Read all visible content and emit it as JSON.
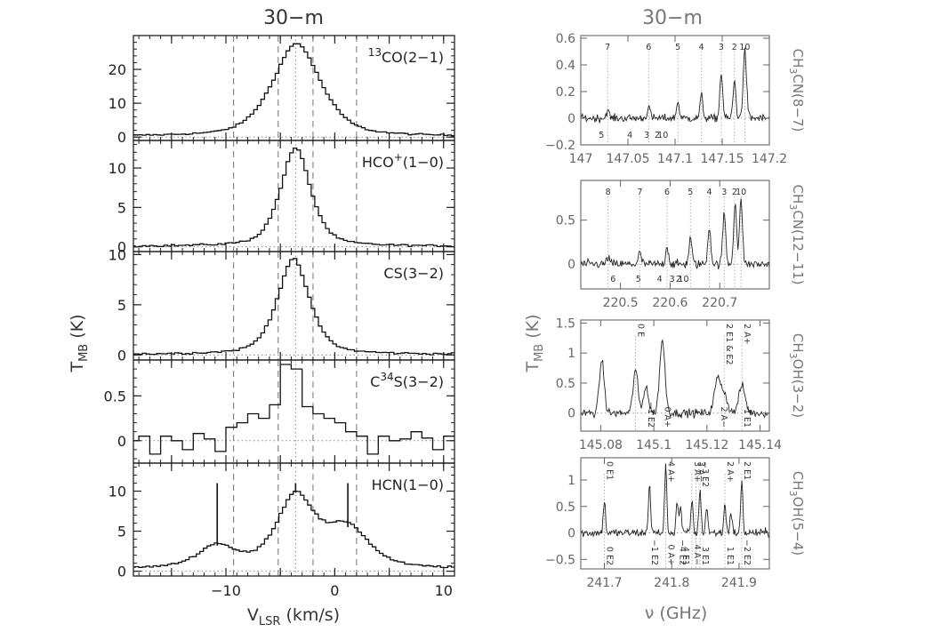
{
  "figure": {
    "left_title": "30−m",
    "right_title": "30−m",
    "left_ylabel_main": "T",
    "left_ylabel_sub": "MB",
    "left_ylabel_unit": " (K)",
    "left_xlabel_main": "V",
    "left_xlabel_sub": "LSR",
    "left_xlabel_unit": " (km/s)",
    "right_ylabel_main": "T",
    "right_ylabel_sub": "MB",
    "right_ylabel_unit": " (K)",
    "right_xlabel": "ν (GHz)"
  },
  "chart_data": [
    {
      "type": "line",
      "step": true,
      "panel": "left-1",
      "line_label_pre": "",
      "line_label_sup": "13",
      "line_label_post": "CO(2−1)",
      "xlim": [
        -18.5,
        11
      ],
      "ylim": [
        -1,
        30
      ],
      "yticks": [
        0,
        10,
        20
      ],
      "peaks": [
        {
          "center": -3.5,
          "amp": 27.5,
          "width": 2.4
        }
      ],
      "baseline": 0.15,
      "noise": 0.25,
      "step_width": 0.33,
      "vlines_dashed": [
        -9.3,
        -5.2,
        -2.0,
        2.0
      ],
      "vline_dotted": -3.6,
      "zero_dotted": true,
      "show_xticklabels": false
    },
    {
      "type": "line",
      "step": true,
      "panel": "left-2",
      "line_label_pre": "HCO",
      "line_label_sup": "+",
      "line_label_post": "(1−0)",
      "xlim": [
        -18.5,
        11
      ],
      "ylim": [
        -0.6,
        13.5
      ],
      "yticks": [
        0,
        5,
        10
      ],
      "peaks": [
        {
          "center": -3.6,
          "amp": 12.5,
          "width": 1.5
        }
      ],
      "baseline": 0.05,
      "noise": 0.12,
      "step_width": 0.33,
      "vlines_dashed": [
        -9.3,
        -5.2,
        -2.0,
        2.0
      ],
      "vline_dotted": -3.6,
      "zero_dotted": true,
      "show_xticklabels": false
    },
    {
      "type": "line",
      "step": true,
      "panel": "left-3",
      "line_label_pre": "CS(3−2)",
      "line_label_sup": "",
      "line_label_post": "",
      "xlim": [
        -18.5,
        11
      ],
      "ylim": [
        -0.5,
        10.3
      ],
      "yticks": [
        0,
        5,
        10
      ],
      "peaks": [
        {
          "center": -3.8,
          "amp": 9.5,
          "width": 1.6
        }
      ],
      "baseline": 0.05,
      "noise": 0.1,
      "step_width": 0.33,
      "vlines_dashed": [
        -9.3,
        -5.2,
        -2.0,
        2.0
      ],
      "vline_dotted": -3.6,
      "zero_dotted": true,
      "show_xticklabels": false
    },
    {
      "type": "line",
      "step": true,
      "panel": "left-4",
      "line_label_pre": "C",
      "line_label_sup": "34",
      "line_label_post": "S(3−2)",
      "xlim": [
        -18.5,
        11
      ],
      "ylim": [
        -0.25,
        0.9
      ],
      "yticks": [
        0,
        0.5
      ],
      "x_values": [
        -18.5,
        -17.5,
        -16.5,
        -15.5,
        -14.5,
        -13.5,
        -12.5,
        -11.5,
        -10.5,
        -9.5,
        -8.5,
        -7.5,
        -6.5,
        -5.5,
        -4.5,
        -3.5,
        -2.5,
        -1.5,
        -0.5,
        0.5,
        1.5,
        2.5,
        3.5,
        4.5,
        5.5,
        6.5,
        7.5,
        8.5,
        9.5,
        10.5
      ],
      "y_values": [
        0.0,
        0.05,
        -0.15,
        0.05,
        0.0,
        -0.1,
        0.08,
        0.02,
        -0.12,
        0.15,
        0.2,
        0.3,
        0.25,
        0.4,
        0.85,
        0.8,
        0.38,
        0.3,
        0.25,
        0.2,
        0.1,
        0.05,
        -0.15,
        0.05,
        0.0,
        0.02,
        0.1,
        0.03,
        -0.1,
        0.05
      ],
      "step_width": 1.0,
      "vlines_dashed": [
        -9.3,
        -5.2,
        -2.0,
        2.0
      ],
      "vline_dotted": -3.6,
      "zero_dotted": true,
      "show_xticklabels": false
    },
    {
      "type": "line",
      "step": true,
      "panel": "left-5",
      "line_label_pre": "HCN(1−0)",
      "line_label_sup": "",
      "line_label_post": "",
      "xlim": [
        -18.5,
        11
      ],
      "ylim": [
        -0.6,
        13.5
      ],
      "yticks": [
        0,
        5,
        10
      ],
      "xticks": [
        -10,
        -5,
        0,
        5,
        10
      ],
      "xticklabels_shown": [
        -10,
        0,
        10
      ],
      "peaks": [
        {
          "center": -10.8,
          "amp": 2.8,
          "width": 1.9
        },
        {
          "center": -3.6,
          "amp": 9.0,
          "width": 1.9
        },
        {
          "center": 1.2,
          "amp": 5.0,
          "width": 2.1
        }
      ],
      "baseline": 0.3,
      "noise": 0.12,
      "step_width": 0.33,
      "hfs_bars": [
        {
          "x": -10.8,
          "y0": 3.2,
          "y1": 11.0
        },
        {
          "x": -3.6,
          "y0": 9.8,
          "y1": 11.0
        },
        {
          "x": 1.2,
          "y0": 5.5,
          "y1": 11.0
        }
      ],
      "vlines_dashed": [
        -9.3,
        -5.2,
        -2.0,
        2.0
      ],
      "vline_dotted": -3.6,
      "zero_dotted": true,
      "show_xticklabels": true
    },
    {
      "type": "line",
      "panel": "right-1",
      "side_label_main": "CH",
      "side_label_sub": "3",
      "side_label_post": "CN(8−7)",
      "xlim": [
        147.0,
        147.2
      ],
      "ylim": [
        -0.2,
        0.62
      ],
      "yticks": [
        -0.2,
        0,
        0.2,
        0.4,
        0.6
      ],
      "xticks": [
        147,
        147.05,
        147.1,
        147.15,
        147.2
      ],
      "xticklabels": [
        "147",
        "147.05",
        "147.1",
        "147.15",
        "147.2"
      ],
      "peaks": [
        {
          "center": 147.0285,
          "amp": 0.06,
          "width": 0.0015
        },
        {
          "center": 147.072,
          "amp": 0.09,
          "width": 0.0015
        },
        {
          "center": 147.103,
          "amp": 0.12,
          "width": 0.0015
        },
        {
          "center": 147.128,
          "amp": 0.17,
          "width": 0.0015
        },
        {
          "center": 147.149,
          "amp": 0.34,
          "width": 0.0015
        },
        {
          "center": 147.163,
          "amp": 0.28,
          "width": 0.0015
        },
        {
          "center": 147.174,
          "amp": 0.5,
          "width": 0.0018
        }
      ],
      "noise": 0.03,
      "top_marks": [
        {
          "x": 147.0285,
          "label": "7"
        },
        {
          "x": 147.072,
          "label": "6"
        },
        {
          "x": 147.103,
          "label": "5"
        },
        {
          "x": 147.128,
          "label": "4"
        },
        {
          "x": 147.149,
          "label": "3"
        },
        {
          "x": 147.163,
          "label": "2"
        },
        {
          "x": 147.174,
          "label": "10"
        }
      ],
      "bottom_marks": [
        {
          "x": 147.022,
          "label": "5"
        },
        {
          "x": 147.052,
          "label": "4"
        },
        {
          "x": 147.07,
          "label": "3"
        },
        {
          "x": 147.081,
          "label": "2"
        },
        {
          "x": 147.087,
          "label": "10"
        }
      ]
    },
    {
      "type": "line",
      "panel": "right-2",
      "side_label_main": "CH",
      "side_label_sub": "3",
      "side_label_post": "CN(12−11)",
      "xlim": [
        220.42,
        220.8
      ],
      "ylim": [
        -0.28,
        0.95
      ],
      "yticks": [
        0,
        0.5
      ],
      "xticks": [
        220.5,
        220.6,
        220.7
      ],
      "xticklabels": [
        "220.5",
        "220.6",
        "220.7"
      ],
      "peaks": [
        {
          "center": 220.475,
          "amp": 0.08,
          "width": 0.003
        },
        {
          "center": 220.539,
          "amp": 0.13,
          "width": 0.003
        },
        {
          "center": 220.594,
          "amp": 0.2,
          "width": 0.003
        },
        {
          "center": 220.641,
          "amp": 0.3,
          "width": 0.003
        },
        {
          "center": 220.679,
          "amp": 0.42,
          "width": 0.003
        },
        {
          "center": 220.709,
          "amp": 0.58,
          "width": 0.003
        },
        {
          "center": 220.731,
          "amp": 0.7,
          "width": 0.003
        },
        {
          "center": 220.743,
          "amp": 0.72,
          "width": 0.003
        }
      ],
      "noise": 0.05,
      "top_marks": [
        {
          "x": 220.475,
          "label": "8"
        },
        {
          "x": 220.539,
          "label": "7"
        },
        {
          "x": 220.594,
          "label": "6"
        },
        {
          "x": 220.641,
          "label": "5"
        },
        {
          "x": 220.679,
          "label": "4"
        },
        {
          "x": 220.709,
          "label": "3"
        },
        {
          "x": 220.73,
          "label": "2"
        },
        {
          "x": 220.743,
          "label": "10"
        }
      ],
      "bottom_marks": [
        {
          "x": 220.485,
          "label": "6"
        },
        {
          "x": 220.536,
          "label": "5"
        },
        {
          "x": 220.579,
          "label": "4"
        },
        {
          "x": 220.604,
          "label": "3"
        },
        {
          "x": 220.617,
          "label": "2"
        },
        {
          "x": 220.627,
          "label": "10"
        }
      ]
    },
    {
      "type": "line",
      "panel": "right-3",
      "side_label_main": "CH",
      "side_label_sub": "3",
      "side_label_post": "OH(3−2)",
      "xlim": [
        145.0725,
        145.1435
      ],
      "ylim": [
        -0.3,
        1.55
      ],
      "yticks": [
        0,
        0.5,
        1,
        1.5
      ],
      "xticks": [
        145.08,
        145.1,
        145.12,
        145.14
      ],
      "xticklabels": [
        "145.08",
        "145.1",
        "145.12",
        "145.14"
      ],
      "peaks": [
        {
          "center": 145.0804,
          "amp": 0.88,
          "width": 0.0009
        },
        {
          "center": 145.0931,
          "amp": 0.72,
          "width": 0.0009
        },
        {
          "center": 145.097,
          "amp": 0.45,
          "width": 0.0009
        },
        {
          "center": 145.1032,
          "amp": 1.2,
          "width": 0.001
        },
        {
          "center": 145.124,
          "amp": 0.55,
          "width": 0.0012
        },
        {
          "center": 145.1265,
          "amp": 0.3,
          "width": 0.0012
        },
        {
          "center": 145.1332,
          "amp": 0.45,
          "width": 0.0012
        }
      ],
      "noise": 0.07,
      "top_marks": [
        {
          "x": 145.0931,
          "label": "0 E"
        },
        {
          "x": 145.1265,
          "label": "2 E1 & E2"
        },
        {
          "x": 145.1332,
          "label": "2 A+"
        }
      ],
      "bottom_marks": [
        {
          "x": 145.097,
          "label": "−1 E2"
        },
        {
          "x": 145.1032,
          "label": "0 A+"
        },
        {
          "x": 145.1244,
          "label": "2 A−"
        },
        {
          "x": 145.1332,
          "label": "1 E1"
        }
      ]
    },
    {
      "type": "line",
      "panel": "right-4",
      "side_label_main": "CH",
      "side_label_sub": "3",
      "side_label_post": "OH(5−4)",
      "xlim": [
        241.665,
        241.945
      ],
      "ylim": [
        -0.68,
        1.42
      ],
      "yticks": [
        -0.5,
        0,
        0.5,
        1
      ],
      "xticks": [
        241.7,
        241.8,
        241.9
      ],
      "xticklabels": [
        "241.7",
        "241.8",
        "241.9"
      ],
      "peaks": [
        {
          "center": 241.7,
          "amp": 0.62,
          "width": 0.0016
        },
        {
          "center": 241.767,
          "amp": 0.95,
          "width": 0.0016
        },
        {
          "center": 241.791,
          "amp": 1.25,
          "width": 0.0016
        },
        {
          "center": 241.808,
          "amp": 0.6,
          "width": 0.0016
        },
        {
          "center": 241.813,
          "amp": 0.5,
          "width": 0.0016
        },
        {
          "center": 241.83,
          "amp": 0.62,
          "width": 0.0016
        },
        {
          "center": 241.842,
          "amp": 0.82,
          "width": 0.0016
        },
        {
          "center": 241.852,
          "amp": 0.5,
          "width": 0.0016
        },
        {
          "center": 241.879,
          "amp": 0.55,
          "width": 0.0016
        },
        {
          "center": 241.888,
          "amp": 0.4,
          "width": 0.0016
        },
        {
          "center": 241.904,
          "amp": 0.95,
          "width": 0.0016
        }
      ],
      "noise": 0.08,
      "top_marks": [
        {
          "x": 241.7,
          "label": "0 E1"
        },
        {
          "x": 241.791,
          "label": "4 A+"
        },
        {
          "x": 241.83,
          "label": "3 A+"
        },
        {
          "x": 241.836,
          "label": "3 A−"
        },
        {
          "x": 241.842,
          "label": "−3 E2"
        },
        {
          "x": 241.879,
          "label": "2 A+"
        },
        {
          "x": 241.904,
          "label": "2 E1"
        }
      ],
      "bottom_marks": [
        {
          "x": 241.7,
          "label": "0 E2"
        },
        {
          "x": 241.767,
          "label": "−1 E2"
        },
        {
          "x": 241.791,
          "label": "0 A+"
        },
        {
          "x": 241.808,
          "label": "−4 E2"
        },
        {
          "x": 241.813,
          "label": "4 E1"
        },
        {
          "x": 241.83,
          "label": "4 A−"
        },
        {
          "x": 241.842,
          "label": "3 E1"
        },
        {
          "x": 241.879,
          "label": "1 E1"
        },
        {
          "x": 241.904,
          "label": "−2 E2"
        }
      ]
    }
  ]
}
